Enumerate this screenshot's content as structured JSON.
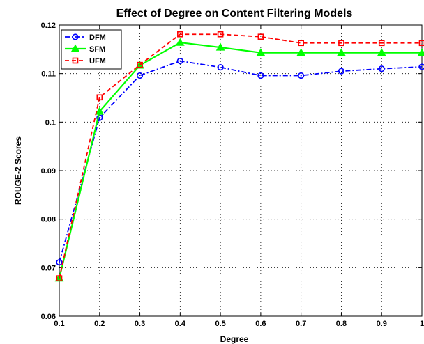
{
  "chart_data": {
    "type": "line",
    "title": "Effect of Degree on Content Filtering Models",
    "xlabel": "Degree",
    "ylabel": "ROUGE-2 Scores",
    "x": [
      0.1,
      0.2,
      0.3,
      0.4,
      0.5,
      0.6,
      0.7,
      0.8,
      0.9,
      1.0
    ],
    "xlim": [
      0.1,
      1.0
    ],
    "ylim": [
      0.06,
      0.12
    ],
    "xticks": [
      "0.1",
      "0.2",
      "0.3",
      "0.4",
      "0.5",
      "0.6",
      "0.7",
      "0.8",
      "0.9",
      "1"
    ],
    "yticks": [
      "0.06",
      "0.07",
      "0.08",
      "0.09",
      "0.1",
      "0.11",
      "0.12"
    ],
    "grid": true,
    "legend_position": "top-left",
    "series": [
      {
        "name": "DFM",
        "color": "#0000ff",
        "marker": "circle",
        "dash": "dash-dot",
        "values": [
          0.0711,
          0.1009,
          0.1096,
          0.1126,
          0.1113,
          0.1096,
          0.1096,
          0.1105,
          0.111,
          0.1114
        ]
      },
      {
        "name": "SFM",
        "color": "#00ff00",
        "marker": "triangle",
        "dash": "solid",
        "values": [
          0.0678,
          0.1022,
          0.1117,
          0.1164,
          0.1154,
          0.1143,
          0.1143,
          0.1143,
          0.1143,
          0.1143
        ]
      },
      {
        "name": "UFM",
        "color": "#ff0000",
        "marker": "square",
        "dash": "dashed",
        "values": [
          0.0678,
          0.1051,
          0.1118,
          0.1181,
          0.1181,
          0.1176,
          0.1163,
          0.1163,
          0.1163,
          0.1163
        ]
      }
    ]
  }
}
